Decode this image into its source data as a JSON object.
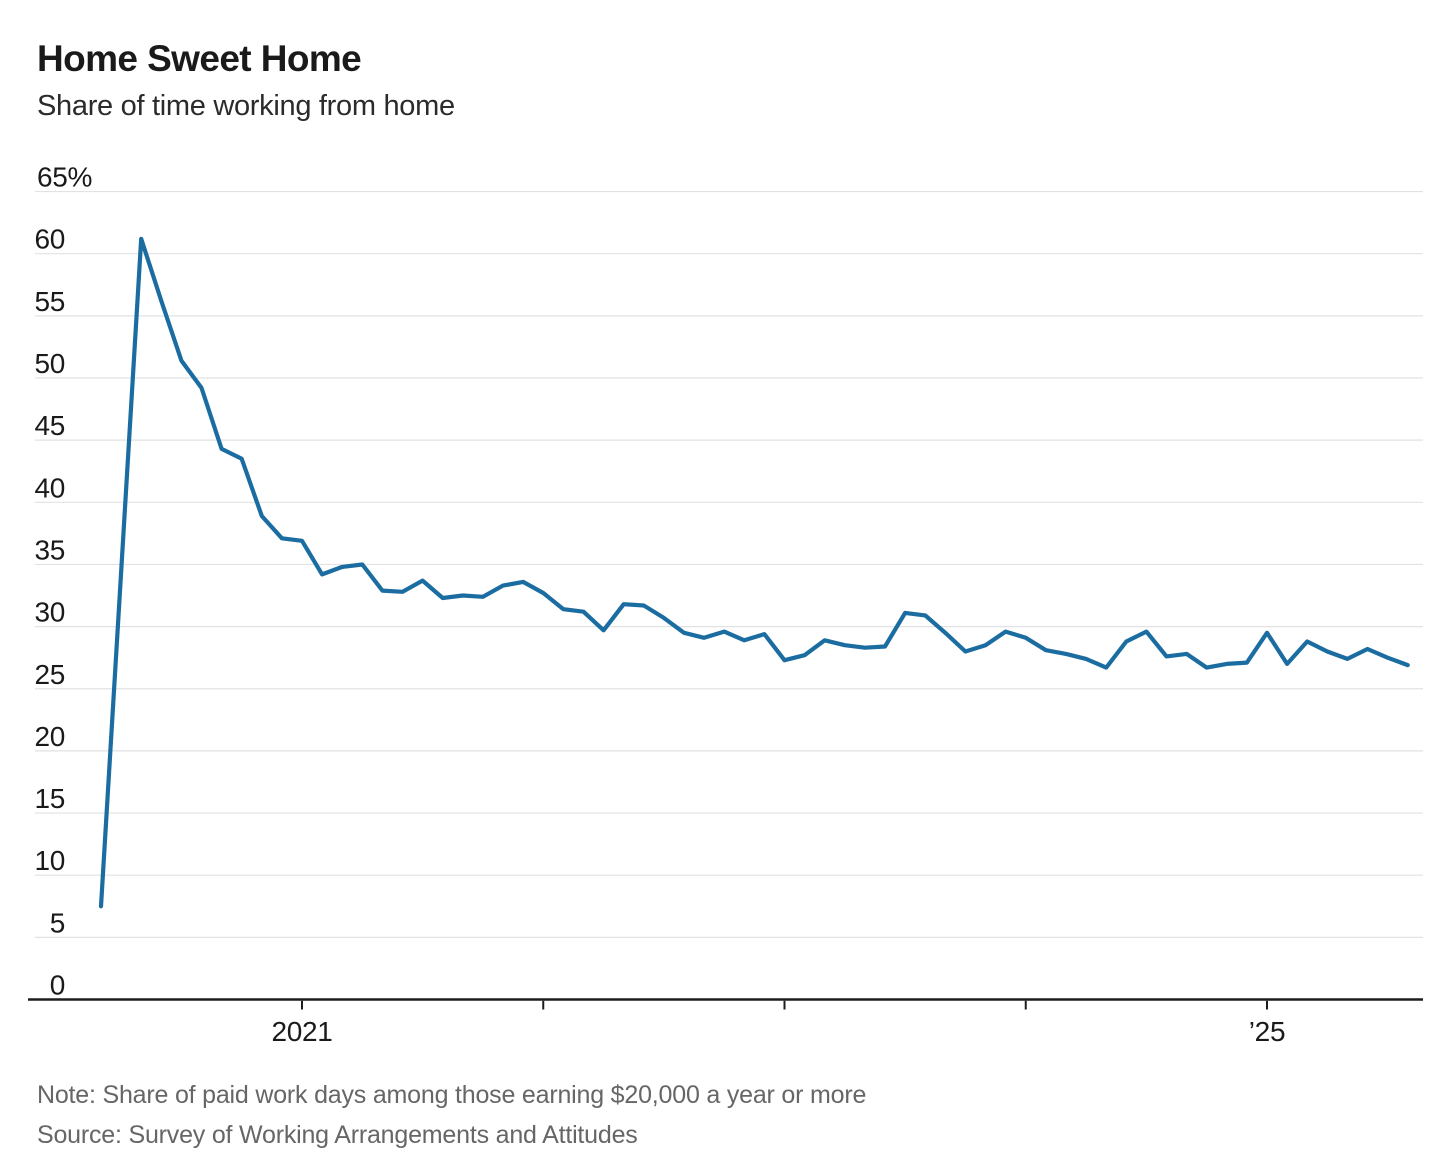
{
  "page": {
    "background": "#ffffff"
  },
  "chart_data": {
    "type": "line",
    "title": "Home Sweet Home",
    "subtitle": "Share of time working from home",
    "note": "Note: Share of paid work days among those earning $20,000 a year or more",
    "source": "Source: Survey of Working Arrangements and Attitudes",
    "xlabel": "",
    "ylabel": "",
    "ylim": [
      0,
      65
    ],
    "ytick_step": 5,
    "ytick_top_label": "65%",
    "grid": true,
    "legend_position": "none",
    "line_color": "#1b6da1",
    "axis_color": "#1d1d1d",
    "gridline_color": "#e2e2e2",
    "label_color": "#1a1a1a",
    "xticks": [
      {
        "year": 2021,
        "label": "2021"
      },
      {
        "year": 2022,
        "label": ""
      },
      {
        "year": 2023,
        "label": ""
      },
      {
        "year": 2024,
        "label": ""
      },
      {
        "year": 2025,
        "label": "’25"
      }
    ],
    "series": [
      {
        "name": "Share of time working from home (%)",
        "points": [
          [
            "2020-03",
            7.5
          ],
          [
            "2020-05",
            61.2
          ],
          [
            "2020-06",
            56.2
          ],
          [
            "2020-07",
            51.4
          ],
          [
            "2020-08",
            49.2
          ],
          [
            "2020-09",
            44.3
          ],
          [
            "2020-10",
            43.5
          ],
          [
            "2020-11",
            38.9
          ],
          [
            "2020-12",
            37.1
          ],
          [
            "2021-01",
            36.9
          ],
          [
            "2021-02",
            34.2
          ],
          [
            "2021-03",
            34.8
          ],
          [
            "2021-04",
            35.0
          ],
          [
            "2021-05",
            32.9
          ],
          [
            "2021-06",
            32.8
          ],
          [
            "2021-07",
            33.7
          ],
          [
            "2021-08",
            32.3
          ],
          [
            "2021-09",
            32.5
          ],
          [
            "2021-10",
            32.4
          ],
          [
            "2021-11",
            33.3
          ],
          [
            "2021-12",
            33.6
          ],
          [
            "2022-01",
            32.7
          ],
          [
            "2022-02",
            31.4
          ],
          [
            "2022-03",
            31.2
          ],
          [
            "2022-04",
            29.7
          ],
          [
            "2022-05",
            31.8
          ],
          [
            "2022-06",
            31.7
          ],
          [
            "2022-07",
            30.7
          ],
          [
            "2022-08",
            29.5
          ],
          [
            "2022-09",
            29.1
          ],
          [
            "2022-10",
            29.6
          ],
          [
            "2022-11",
            28.9
          ],
          [
            "2022-12",
            29.4
          ],
          [
            "2023-01",
            27.3
          ],
          [
            "2023-02",
            27.7
          ],
          [
            "2023-03",
            28.9
          ],
          [
            "2023-04",
            28.5
          ],
          [
            "2023-05",
            28.3
          ],
          [
            "2023-06",
            28.4
          ],
          [
            "2023-07",
            31.1
          ],
          [
            "2023-08",
            30.9
          ],
          [
            "2023-09",
            29.5
          ],
          [
            "2023-10",
            28.0
          ],
          [
            "2023-11",
            28.5
          ],
          [
            "2023-12",
            29.6
          ],
          [
            "2024-01",
            29.1
          ],
          [
            "2024-02",
            28.1
          ],
          [
            "2024-03",
            27.8
          ],
          [
            "2024-04",
            27.4
          ],
          [
            "2024-05",
            26.7
          ],
          [
            "2024-06",
            28.8
          ],
          [
            "2024-07",
            29.6
          ],
          [
            "2024-08",
            27.6
          ],
          [
            "2024-09",
            27.8
          ],
          [
            "2024-10",
            26.7
          ],
          [
            "2024-11",
            27.0
          ],
          [
            "2024-12",
            27.1
          ],
          [
            "2025-01",
            29.5
          ],
          [
            "2025-02",
            27.0
          ],
          [
            "2025-03",
            28.8
          ],
          [
            "2025-04",
            28.0
          ],
          [
            "2025-05",
            27.4
          ],
          [
            "2025-06",
            28.2
          ],
          [
            "2025-07",
            27.5
          ],
          [
            "2025-08",
            26.9
          ]
        ]
      }
    ]
  }
}
